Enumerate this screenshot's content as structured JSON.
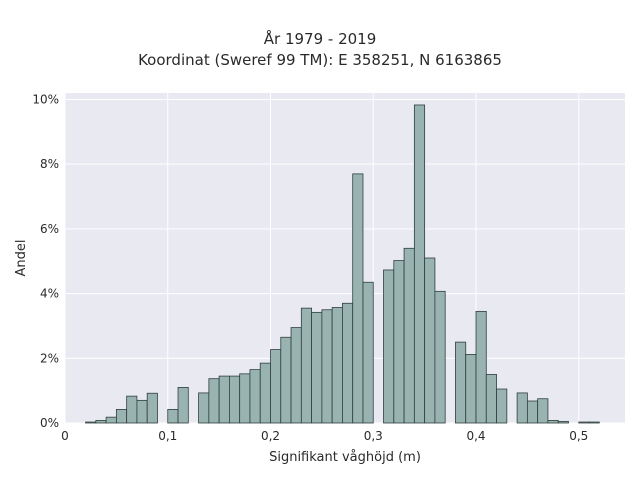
{
  "chart_data": {
    "type": "bar",
    "title": "År 1979 - 2019",
    "subtitle": "Koordinat (Sweref 99 TM): E 358251, N 6163865",
    "xlabel": "Signifikant våghöjd (m)",
    "ylabel": "Andel",
    "xlim": [
      0,
      0.545
    ],
    "ylim": [
      0,
      10.2
    ],
    "grid": true,
    "x_ticks": [
      {
        "value": 0,
        "label": "0"
      },
      {
        "value": 0.1,
        "label": "0,1"
      },
      {
        "value": 0.2,
        "label": "0,2"
      },
      {
        "value": 0.3,
        "label": "0,3"
      },
      {
        "value": 0.4,
        "label": "0,4"
      },
      {
        "value": 0.5,
        "label": "0,5"
      }
    ],
    "y_ticks": [
      {
        "value": 0,
        "label": "0%"
      },
      {
        "value": 2,
        "label": "2%"
      },
      {
        "value": 4,
        "label": "4%"
      },
      {
        "value": 6,
        "label": "6%"
      },
      {
        "value": 8,
        "label": "8%"
      },
      {
        "value": 10,
        "label": "10%"
      }
    ],
    "bin_width": 0.01,
    "bin_starts": [
      0.02,
      0.03,
      0.04,
      0.05,
      0.06,
      0.07,
      0.08,
      0.09,
      0.1,
      0.11,
      0.12,
      0.13,
      0.14,
      0.15,
      0.16,
      0.17,
      0.18,
      0.19,
      0.2,
      0.21,
      0.22,
      0.23,
      0.24,
      0.25,
      0.26,
      0.27,
      0.28,
      0.29,
      0.3,
      0.31,
      0.32,
      0.33,
      0.34,
      0.35,
      0.36,
      0.37,
      0.38,
      0.39,
      0.4,
      0.41,
      0.42,
      0.43,
      0.44,
      0.45,
      0.46,
      0.47,
      0.48,
      0.49,
      0.5,
      0.51
    ],
    "values": [
      0.03,
      0.08,
      0.18,
      0.42,
      0.83,
      0.7,
      0.92,
      0,
      0.42,
      1.1,
      0,
      0.93,
      1.37,
      1.45,
      1.45,
      1.52,
      1.65,
      1.85,
      2.27,
      2.65,
      2.95,
      3.55,
      3.42,
      3.5,
      3.57,
      3.7,
      7.7,
      4.35,
      0,
      4.73,
      5.02,
      5.4,
      9.83,
      5.1,
      4.07,
      0,
      2.5,
      2.12,
      3.45,
      1.5,
      1.05,
      0,
      0.93,
      0.68,
      0.75,
      0.08,
      0.05,
      0,
      0.03,
      0.03
    ],
    "bar_color": "#99b3b0",
    "bar_edge_color": "#2f3f3e",
    "plot_background": "#e9e9f1",
    "grid_color": "#ffffff"
  }
}
